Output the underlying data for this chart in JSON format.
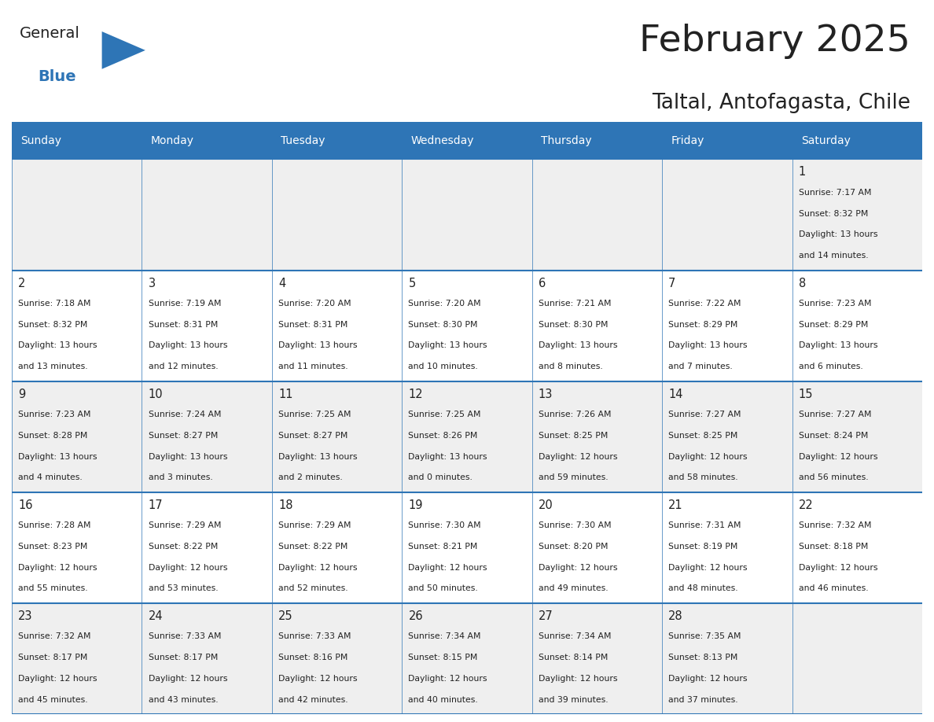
{
  "title": "February 2025",
  "subtitle": "Taltal, Antofagasta, Chile",
  "header_bg": "#2E75B6",
  "header_text": "#FFFFFF",
  "cell_bg_light": "#EFEFEF",
  "cell_bg_white": "#FFFFFF",
  "border_color": "#2E75B6",
  "day_headers": [
    "Sunday",
    "Monday",
    "Tuesday",
    "Wednesday",
    "Thursday",
    "Friday",
    "Saturday"
  ],
  "title_color": "#222222",
  "subtitle_color": "#222222",
  "days": [
    {
      "day": 1,
      "col": 6,
      "row": 0,
      "sunrise": "7:17 AM",
      "sunset": "8:32 PM",
      "daylight": "13 hours and 14 minutes"
    },
    {
      "day": 2,
      "col": 0,
      "row": 1,
      "sunrise": "7:18 AM",
      "sunset": "8:32 PM",
      "daylight": "13 hours and 13 minutes"
    },
    {
      "day": 3,
      "col": 1,
      "row": 1,
      "sunrise": "7:19 AM",
      "sunset": "8:31 PM",
      "daylight": "13 hours and 12 minutes"
    },
    {
      "day": 4,
      "col": 2,
      "row": 1,
      "sunrise": "7:20 AM",
      "sunset": "8:31 PM",
      "daylight": "13 hours and 11 minutes"
    },
    {
      "day": 5,
      "col": 3,
      "row": 1,
      "sunrise": "7:20 AM",
      "sunset": "8:30 PM",
      "daylight": "13 hours and 10 minutes"
    },
    {
      "day": 6,
      "col": 4,
      "row": 1,
      "sunrise": "7:21 AM",
      "sunset": "8:30 PM",
      "daylight": "13 hours and 8 minutes"
    },
    {
      "day": 7,
      "col": 5,
      "row": 1,
      "sunrise": "7:22 AM",
      "sunset": "8:29 PM",
      "daylight": "13 hours and 7 minutes"
    },
    {
      "day": 8,
      "col": 6,
      "row": 1,
      "sunrise": "7:23 AM",
      "sunset": "8:29 PM",
      "daylight": "13 hours and 6 minutes"
    },
    {
      "day": 9,
      "col": 0,
      "row": 2,
      "sunrise": "7:23 AM",
      "sunset": "8:28 PM",
      "daylight": "13 hours and 4 minutes"
    },
    {
      "day": 10,
      "col": 1,
      "row": 2,
      "sunrise": "7:24 AM",
      "sunset": "8:27 PM",
      "daylight": "13 hours and 3 minutes"
    },
    {
      "day": 11,
      "col": 2,
      "row": 2,
      "sunrise": "7:25 AM",
      "sunset": "8:27 PM",
      "daylight": "13 hours and 2 minutes"
    },
    {
      "day": 12,
      "col": 3,
      "row": 2,
      "sunrise": "7:25 AM",
      "sunset": "8:26 PM",
      "daylight": "13 hours and 0 minutes"
    },
    {
      "day": 13,
      "col": 4,
      "row": 2,
      "sunrise": "7:26 AM",
      "sunset": "8:25 PM",
      "daylight": "12 hours and 59 minutes"
    },
    {
      "day": 14,
      "col": 5,
      "row": 2,
      "sunrise": "7:27 AM",
      "sunset": "8:25 PM",
      "daylight": "12 hours and 58 minutes"
    },
    {
      "day": 15,
      "col": 6,
      "row": 2,
      "sunrise": "7:27 AM",
      "sunset": "8:24 PM",
      "daylight": "12 hours and 56 minutes"
    },
    {
      "day": 16,
      "col": 0,
      "row": 3,
      "sunrise": "7:28 AM",
      "sunset": "8:23 PM",
      "daylight": "12 hours and 55 minutes"
    },
    {
      "day": 17,
      "col": 1,
      "row": 3,
      "sunrise": "7:29 AM",
      "sunset": "8:22 PM",
      "daylight": "12 hours and 53 minutes"
    },
    {
      "day": 18,
      "col": 2,
      "row": 3,
      "sunrise": "7:29 AM",
      "sunset": "8:22 PM",
      "daylight": "12 hours and 52 minutes"
    },
    {
      "day": 19,
      "col": 3,
      "row": 3,
      "sunrise": "7:30 AM",
      "sunset": "8:21 PM",
      "daylight": "12 hours and 50 minutes"
    },
    {
      "day": 20,
      "col": 4,
      "row": 3,
      "sunrise": "7:30 AM",
      "sunset": "8:20 PM",
      "daylight": "12 hours and 49 minutes"
    },
    {
      "day": 21,
      "col": 5,
      "row": 3,
      "sunrise": "7:31 AM",
      "sunset": "8:19 PM",
      "daylight": "12 hours and 48 minutes"
    },
    {
      "day": 22,
      "col": 6,
      "row": 3,
      "sunrise": "7:32 AM",
      "sunset": "8:18 PM",
      "daylight": "12 hours and 46 minutes"
    },
    {
      "day": 23,
      "col": 0,
      "row": 4,
      "sunrise": "7:32 AM",
      "sunset": "8:17 PM",
      "daylight": "12 hours and 45 minutes"
    },
    {
      "day": 24,
      "col": 1,
      "row": 4,
      "sunrise": "7:33 AM",
      "sunset": "8:17 PM",
      "daylight": "12 hours and 43 minutes"
    },
    {
      "day": 25,
      "col": 2,
      "row": 4,
      "sunrise": "7:33 AM",
      "sunset": "8:16 PM",
      "daylight": "12 hours and 42 minutes"
    },
    {
      "day": 26,
      "col": 3,
      "row": 4,
      "sunrise": "7:34 AM",
      "sunset": "8:15 PM",
      "daylight": "12 hours and 40 minutes"
    },
    {
      "day": 27,
      "col": 4,
      "row": 4,
      "sunrise": "7:34 AM",
      "sunset": "8:14 PM",
      "daylight": "12 hours and 39 minutes"
    },
    {
      "day": 28,
      "col": 5,
      "row": 4,
      "sunrise": "7:35 AM",
      "sunset": "8:13 PM",
      "daylight": "12 hours and 37 minutes"
    }
  ],
  "num_rows": 5,
  "num_cols": 7,
  "logo_text_general": "General",
  "logo_text_blue": "Blue",
  "logo_color_general": "#222222",
  "logo_color_blue": "#2E75B6",
  "logo_triangle_color": "#2E75B6"
}
